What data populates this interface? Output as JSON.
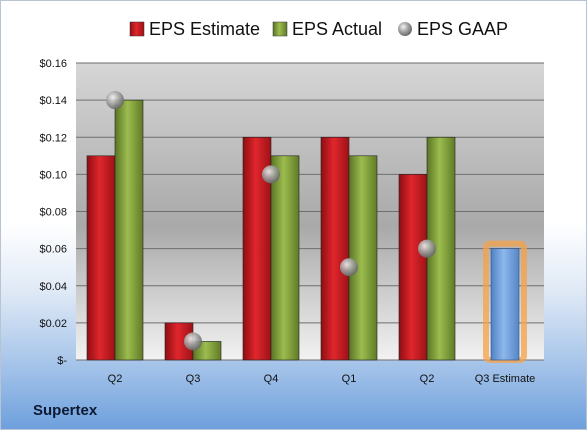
{
  "company": "Supertex",
  "chart_data": {
    "type": "bar",
    "categories": [
      "Q2",
      "Q3",
      "Q4",
      "Q1",
      "Q2",
      "Q3 Estimate"
    ],
    "series": [
      {
        "name": "EPS Estimate",
        "kind": "bar",
        "color": "#c0161d",
        "values": [
          0.11,
          0.02,
          0.12,
          0.12,
          0.1,
          null
        ]
      },
      {
        "name": "EPS Actual",
        "kind": "bar",
        "color": "#7a9a35",
        "values": [
          0.14,
          0.01,
          0.11,
          0.11,
          0.12,
          null
        ]
      },
      {
        "name": "EPS GAAP",
        "kind": "scatter",
        "color": "#9a9a9a",
        "values": [
          0.14,
          0.01,
          0.1,
          0.05,
          0.06,
          null
        ]
      }
    ],
    "estimate": {
      "category": "Q3 Estimate",
      "value": 0.06,
      "color": "#6fa0dc",
      "highlight": "#f5a24a"
    },
    "yticks": [
      "$-",
      "$0.02",
      "$0.04",
      "$0.06",
      "$0.08",
      "$0.10",
      "$0.12",
      "$0.14",
      "$0.16"
    ],
    "ylim": [
      0,
      0.16
    ],
    "grid": true,
    "legend": "top"
  }
}
